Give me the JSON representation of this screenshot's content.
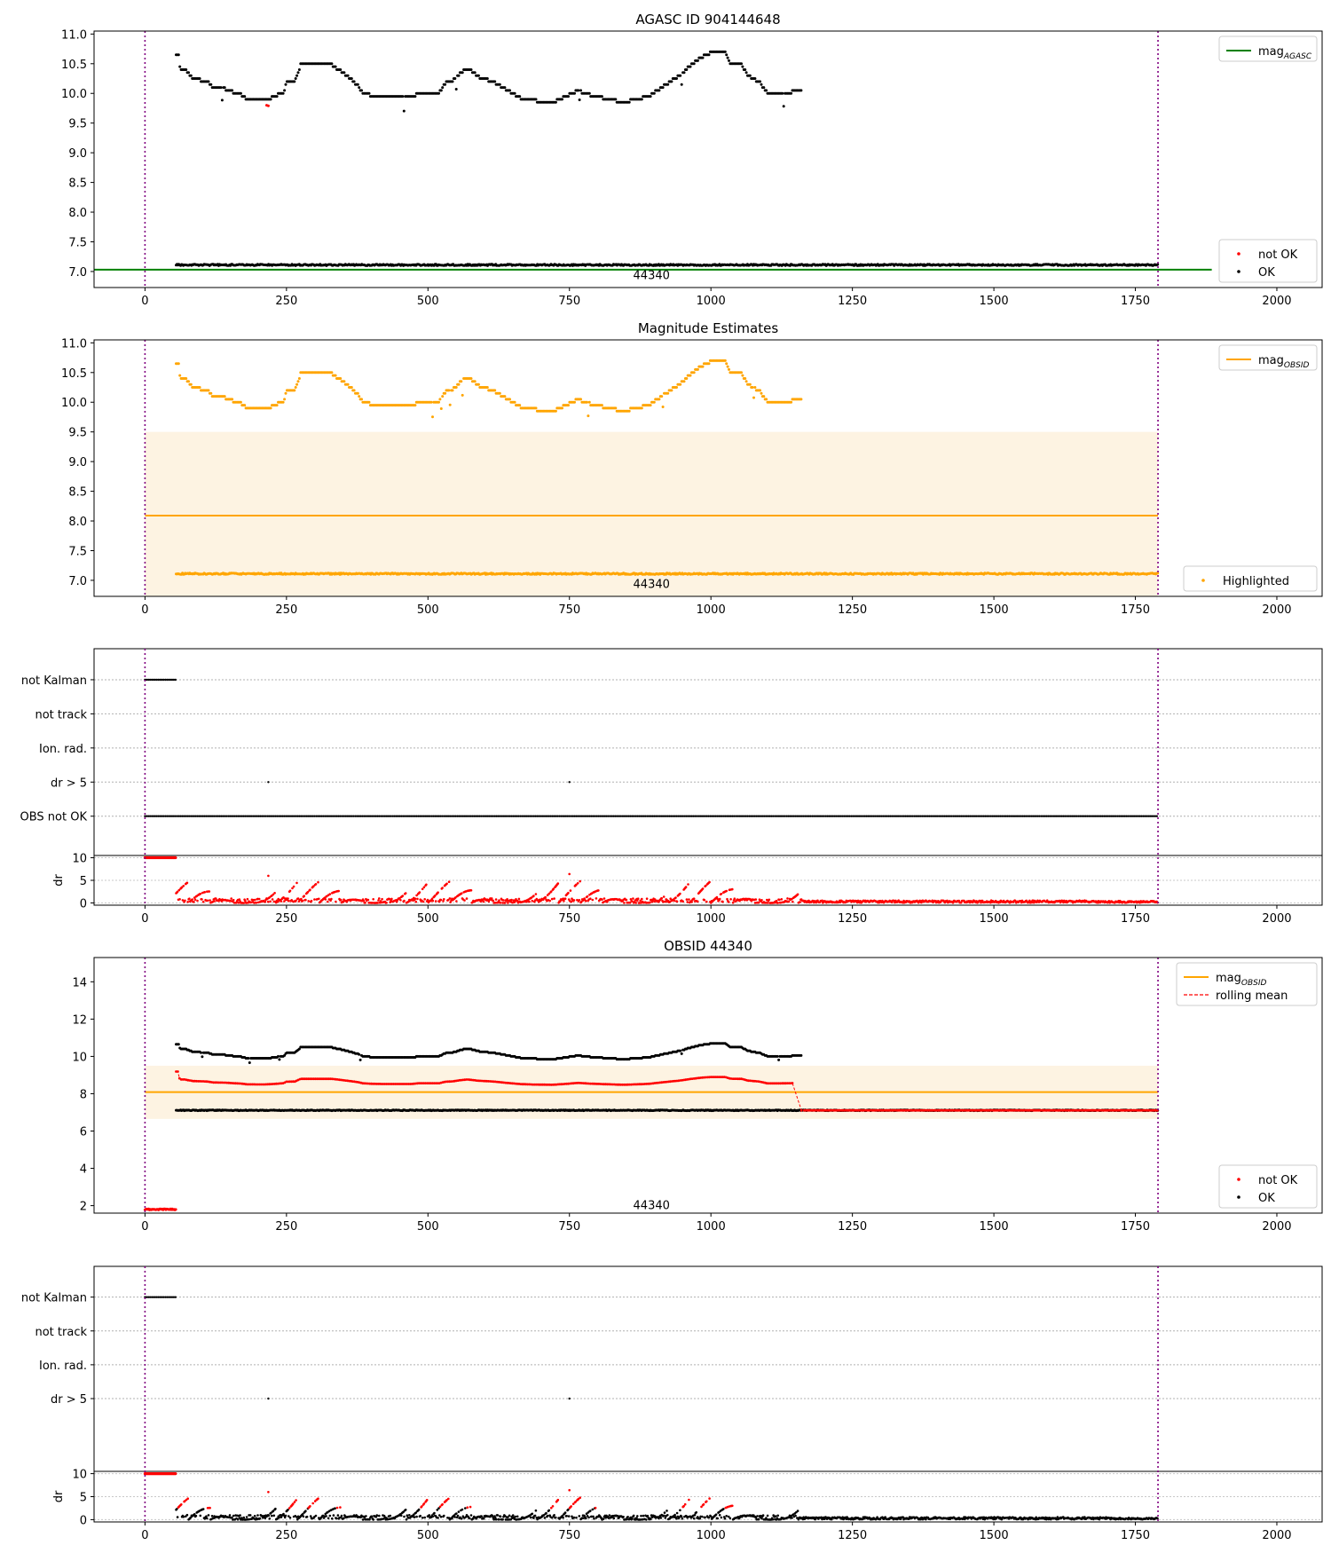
{
  "chart_data": [
    {
      "type": "scatter",
      "title": "AGASC ID 904144648",
      "xlim": [
        -90,
        2080
      ],
      "ylim": [
        6.73,
        11.05
      ],
      "xticks": [
        0,
        250,
        500,
        750,
        1000,
        1250,
        1500,
        1750,
        2000
      ],
      "yticks": [
        7.0,
        7.5,
        8.0,
        8.5,
        9.0,
        9.5,
        10.0,
        10.5,
        11.0
      ],
      "ytick_decimals": 1,
      "obs_boundaries_x": [
        0,
        1790
      ],
      "obs_label": {
        "text": "44340",
        "x": 895,
        "y": 6.95
      },
      "lines": [
        {
          "name": "mag_AGASC",
          "y": 7.03,
          "x": [
            -90,
            1885
          ],
          "color": "#008000"
        }
      ],
      "series": [
        {
          "name": "not OK",
          "color": "#ff0000",
          "points": [
            [
              215,
              9.8
            ],
            [
              218,
              9.79
            ]
          ]
        },
        {
          "name": "OK",
          "color": "#000000",
          "pattern": "mag_track"
        },
        {
          "name": "OK",
          "color": "#000000",
          "pattern": "flat",
          "x_range": [
            55,
            1790
          ],
          "y": 7.11,
          "noise": 0.012
        }
      ],
      "legend_top": {
        "placement": "top-right",
        "entries": [
          {
            "label": "mag",
            "sub": "AGASC",
            "kind": "line",
            "color": "#008000"
          }
        ]
      },
      "legend_bottom": {
        "placement": "bottom-right",
        "entries": [
          {
            "label": "not OK",
            "kind": "dot",
            "color": "#ff0000"
          },
          {
            "label": "OK",
            "kind": "dot",
            "color": "#000000"
          }
        ]
      }
    },
    {
      "type": "scatter",
      "title": "Magnitude Estimates",
      "xlim": [
        -90,
        2080
      ],
      "ylim": [
        6.73,
        11.05
      ],
      "xticks": [
        0,
        250,
        500,
        750,
        1000,
        1250,
        1500,
        1750,
        2000
      ],
      "yticks": [
        7.0,
        7.5,
        8.0,
        8.5,
        9.0,
        9.5,
        10.0,
        10.5,
        11.0
      ],
      "ytick_decimals": 1,
      "obs_boundaries_x": [
        0,
        1790
      ],
      "obs_label": {
        "text": "44340",
        "x": 895,
        "y": 6.95
      },
      "band": {
        "x": [
          0,
          1790
        ],
        "y": [
          6.73,
          9.5
        ],
        "color": "#fdf3e2"
      },
      "lines": [
        {
          "name": "mag_OBSID",
          "y": 8.09,
          "x": [
            0,
            1790
          ],
          "color": "#ffa500"
        }
      ],
      "series": [
        {
          "name": "Highlighted",
          "color": "#ffa500",
          "pattern": "mag_track"
        },
        {
          "name": "Highlighted",
          "color": "#ffa500",
          "pattern": "flat",
          "x_range": [
            55,
            1790
          ],
          "y": 7.11,
          "noise": 0.012
        }
      ],
      "legend_top": {
        "placement": "top-right",
        "entries": [
          {
            "label": "mag",
            "sub": "OBSID",
            "kind": "line",
            "color": "#ffa500"
          }
        ]
      },
      "legend_bottom": {
        "placement": "bottom-right",
        "entries": [
          {
            "label": "Highlighted",
            "kind": "dot",
            "color": "#ffa500"
          }
        ]
      }
    },
    {
      "type": "scatter",
      "xlim": [
        -90,
        2080
      ],
      "obs_boundaries_x": [
        0,
        1790
      ],
      "categories": [
        "not Kalman",
        "not track",
        "Ion. rad.",
        "dr > 5",
        "OBS not OK"
      ],
      "flag_series": [
        {
          "category": "not Kalman",
          "x_range": [
            0,
            55
          ],
          "color": "#000000"
        },
        {
          "category": "dr > 5",
          "points_x": [
            218,
            750
          ],
          "color": "#000000"
        },
        {
          "category": "OBS not OK",
          "x_range": [
            0,
            1790
          ],
          "color": "#000000"
        }
      ],
      "dr": {
        "ylabel": "dr",
        "yticks": [
          0,
          5,
          10
        ],
        "ylim": [
          -0.5,
          10.5
        ],
        "clip_bar": {
          "x_range": [
            0,
            55
          ],
          "y": 10,
          "color": "#ff0000"
        },
        "series": [
          {
            "name": "dr",
            "color": "#ff0000",
            "pattern": "dr",
            "x_range": [
              55,
              1790
            ]
          }
        ]
      },
      "xticks": [
        0,
        250,
        500,
        750,
        1000,
        1250,
        1500,
        1750,
        2000
      ]
    },
    {
      "type": "scatter",
      "title": "OBSID 44340",
      "xlim": [
        -90,
        2080
      ],
      "ylim": [
        1.6,
        15.3
      ],
      "xticks": [
        0,
        250,
        500,
        750,
        1000,
        1250,
        1500,
        1750,
        2000
      ],
      "yticks": [
        2,
        4,
        6,
        8,
        10,
        12,
        14
      ],
      "ytick_decimals": 0,
      "obs_boundaries_x": [
        0,
        1790
      ],
      "obs_label": {
        "text": "44340",
        "x": 895,
        "y": 2.05
      },
      "band": {
        "x": [
          0,
          1790
        ],
        "y": [
          6.65,
          9.5
        ],
        "color": "#fdf3e2"
      },
      "lines": [
        {
          "name": "mag_OBSID",
          "y": 8.09,
          "x": [
            0,
            1790
          ],
          "color": "#ffa500"
        }
      ],
      "rolling_mean": {
        "name": "rolling mean",
        "color": "#ff0000",
        "x_range": [
          55,
          1790
        ]
      },
      "series": [
        {
          "name": "not OK",
          "color": "#ff0000",
          "pattern": "flat",
          "x_range": [
            0,
            55
          ],
          "y": 1.8,
          "noise": 0.03
        },
        {
          "name": "OK",
          "color": "#000000",
          "pattern": "mag_track"
        },
        {
          "name": "OK",
          "color": "#000000",
          "pattern": "flat",
          "x_range": [
            55,
            1790
          ],
          "y": 7.11,
          "noise": 0.02
        }
      ],
      "legend_top": {
        "placement": "top-right",
        "entries": [
          {
            "label": "mag",
            "sub": "OBSID",
            "kind": "line",
            "color": "#ffa500"
          },
          {
            "label": "rolling mean",
            "kind": "dash",
            "color": "#ff0000"
          }
        ]
      },
      "legend_bottom": {
        "placement": "bottom-right",
        "entries": [
          {
            "label": "not OK",
            "kind": "dot",
            "color": "#ff0000"
          },
          {
            "label": "OK",
            "kind": "dot",
            "color": "#000000"
          }
        ]
      }
    },
    {
      "type": "scatter",
      "xlim": [
        -90,
        2080
      ],
      "obs_boundaries_x": [
        0,
        1790
      ],
      "categories": [
        "not Kalman",
        "not track",
        "Ion. rad.",
        "dr > 5"
      ],
      "flag_series": [
        {
          "category": "not Kalman",
          "x_range": [
            0,
            55
          ],
          "color": "#000000"
        },
        {
          "category": "dr > 5",
          "points_x": [
            218,
            750
          ],
          "color": "#000000"
        }
      ],
      "dr": {
        "ylabel": "dr",
        "yticks": [
          0,
          5,
          10
        ],
        "ylim": [
          -0.5,
          10.5
        ],
        "clip_bar": {
          "x_range": [
            0,
            55
          ],
          "y": 10,
          "color": "#ff0000"
        },
        "series": [
          {
            "name": "dr",
            "color": "#000000",
            "highlight_color": "#ff0000",
            "pattern": "dr",
            "x_range": [
              55,
              1790
            ]
          }
        ]
      },
      "xticks": [
        0,
        250,
        500,
        750,
        1000,
        1250,
        1500,
        1750,
        2000
      ]
    }
  ]
}
